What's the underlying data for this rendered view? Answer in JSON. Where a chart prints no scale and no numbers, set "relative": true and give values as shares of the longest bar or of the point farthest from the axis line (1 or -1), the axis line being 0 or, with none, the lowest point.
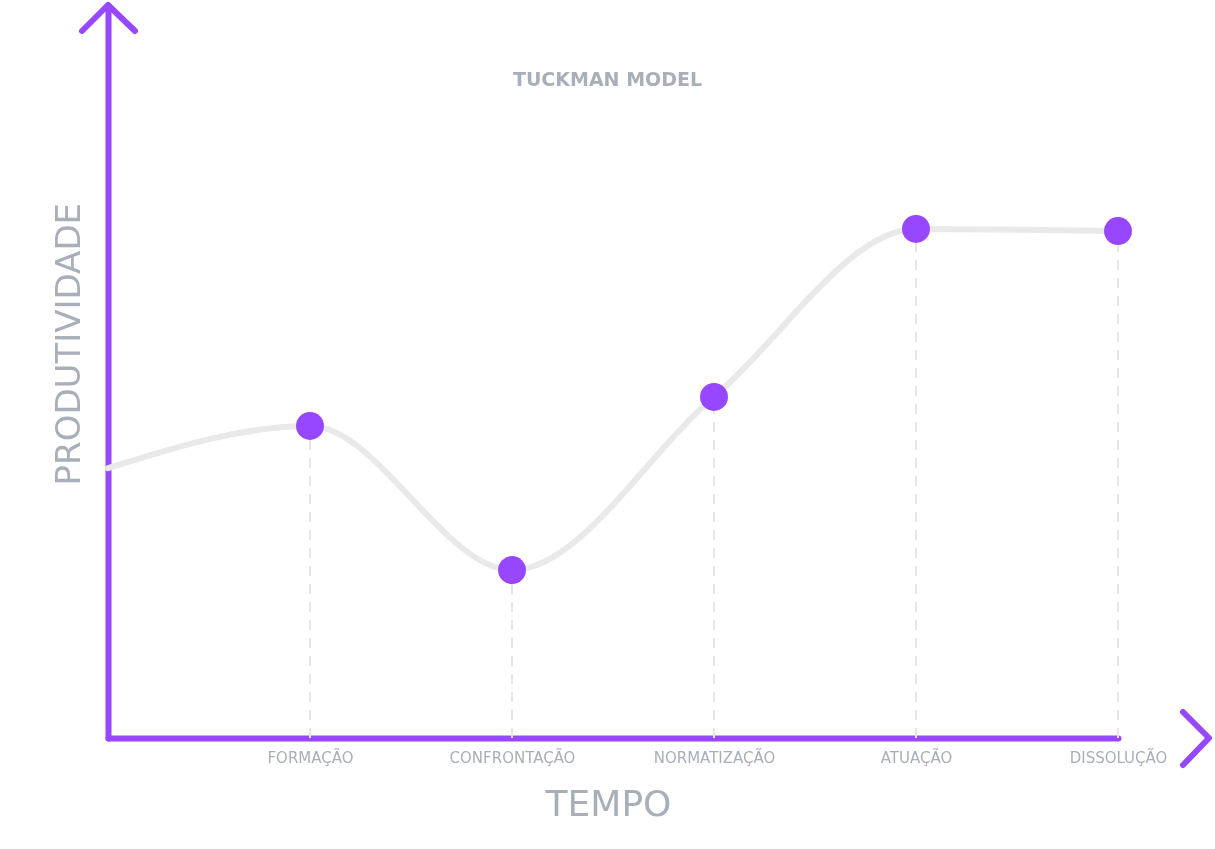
{
  "chart_data": {
    "type": "line",
    "title": "TUCKMAN MODEL",
    "xlabel": "TEMPO",
    "ylabel": "PRODUTIVIDADE",
    "relative": true,
    "grid": "x",
    "categories": [
      null,
      "FORMAÇÃO",
      "CONFRONTAÇÃO",
      "NORMATIZAÇÃO",
      "ATUAÇÃO",
      "DISSOLUÇÃO"
    ],
    "series": [
      {
        "color": "#e9e9e9",
        "marker": "none",
        "values": [
          0.53,
          0.613,
          0.33,
          0.67,
          1,
          0.996
        ]
      },
      {
        "type": "scatter",
        "color": "#9747ff",
        "marker": "circle",
        "values": [
          null,
          0.613,
          0.33,
          0.67,
          1,
          0.996
        ]
      }
    ]
  }
}
